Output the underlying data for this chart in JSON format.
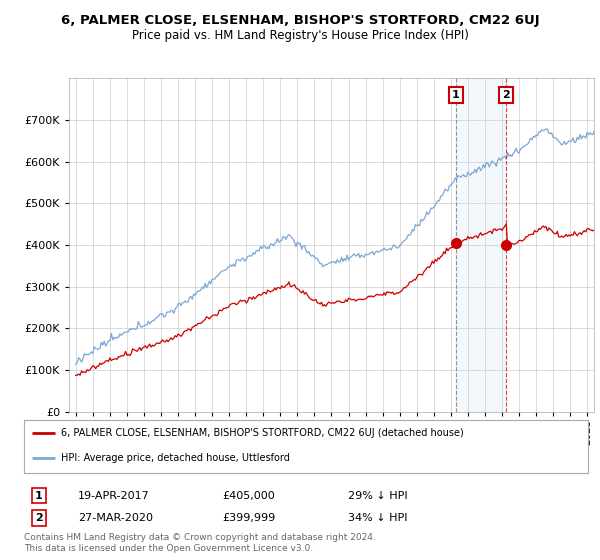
{
  "title_line1": "6, PALMER CLOSE, ELSENHAM, BISHOP'S STORTFORD, CM22 6UJ",
  "title_line2": "Price paid vs. HM Land Registry's House Price Index (HPI)",
  "background_color": "#ffffff",
  "plot_bg_color": "#ffffff",
  "grid_color": "#cccccc",
  "red_line_color": "#cc0000",
  "blue_line_color": "#7aa8d2",
  "shade_color": "#d0e4f5",
  "marker1_date_x": 2017.3,
  "marker2_date_x": 2020.25,
  "marker1_price": 405000,
  "marker2_price": 399999,
  "annotation1": "1",
  "annotation2": "2",
  "legend_line1": "6, PALMER CLOSE, ELSENHAM, BISHOP'S STORTFORD, CM22 6UJ (detached house)",
  "legend_line2": "HPI: Average price, detached house, Uttlesford",
  "table_row1": [
    "1",
    "19-APR-2017",
    "£405,000",
    "29% ↓ HPI"
  ],
  "table_row2": [
    "2",
    "27-MAR-2020",
    "£399,999",
    "34% ↓ HPI"
  ],
  "footnote": "Contains HM Land Registry data © Crown copyright and database right 2024.\nThis data is licensed under the Open Government Licence v3.0.",
  "ylim": [
    0,
    800000
  ],
  "yticks": [
    0,
    100000,
    200000,
    300000,
    400000,
    500000,
    600000,
    700000
  ],
  "xmin": 1994.6,
  "xmax": 2025.4
}
